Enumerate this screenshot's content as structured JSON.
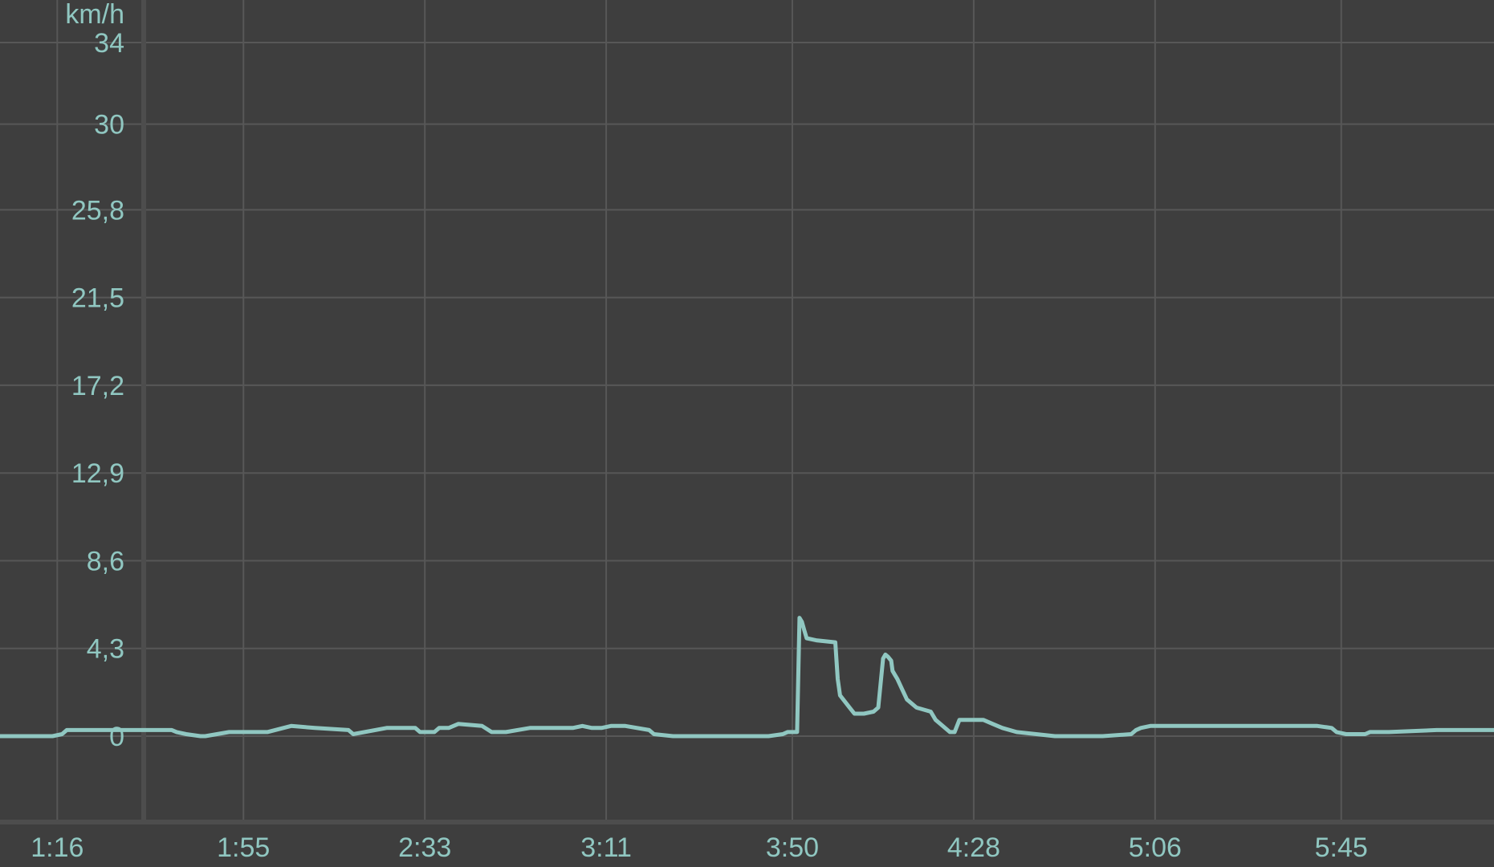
{
  "chart_data": {
    "type": "line",
    "title": "",
    "xlabel": "",
    "ylabel": "km/h",
    "grid": true,
    "legend": "none",
    "colors": {
      "background": "#3e3e3e",
      "grid": "#575757",
      "axis": "#4d4d4d",
      "line": "#90c7c1",
      "text": "#90c7c1"
    },
    "ylim": [
      -4.3,
      34
    ],
    "y_ticks": [
      {
        "value": 0,
        "label": "0"
      },
      {
        "value": 4.3,
        "label": "4,3"
      },
      {
        "value": 8.6,
        "label": "8,6"
      },
      {
        "value": 12.9,
        "label": "12,9"
      },
      {
        "value": 17.2,
        "label": "17,2"
      },
      {
        "value": 21.5,
        "label": "21,5"
      },
      {
        "value": 25.8,
        "label": "25,8"
      },
      {
        "value": 30,
        "label": "30"
      },
      {
        "value": 34,
        "label": "34"
      }
    ],
    "x_range_minutes": [
      64,
      377
    ],
    "x_ticks": [
      {
        "minutes": 76,
        "label": "1:16"
      },
      {
        "minutes": 115,
        "label": "1:55"
      },
      {
        "minutes": 153,
        "label": "2:33"
      },
      {
        "minutes": 191,
        "label": "3:11"
      },
      {
        "minutes": 230,
        "label": "3:50"
      },
      {
        "minutes": 268,
        "label": "4:28"
      },
      {
        "minutes": 306,
        "label": "5:06"
      },
      {
        "minutes": 345,
        "label": "5:45"
      }
    ],
    "x_grid_extra_minutes": [],
    "series": [
      {
        "name": "",
        "x_minutes": [
          64,
          75,
          77,
          78,
          100,
          101,
          103,
          106,
          107,
          112,
          114,
          120,
          125,
          130,
          137,
          138,
          145,
          151,
          152,
          155,
          156,
          158,
          160,
          165,
          167,
          170,
          175,
          177,
          178,
          184,
          186,
          188,
          190,
          192,
          194,
          195,
          200,
          201,
          205,
          206,
          214,
          220,
          225,
          228,
          229,
          231,
          231.5,
          232,
          232.5,
          233,
          235,
          239,
          239.5,
          240,
          242,
          243,
          245,
          247,
          248,
          249,
          249.5,
          250,
          250.7,
          251,
          251.5,
          252,
          253,
          254,
          256,
          259,
          260,
          263,
          264,
          264.5,
          265,
          270,
          272,
          274,
          277,
          285,
          290,
          295,
          301,
          302,
          303,
          305,
          306,
          307,
          310,
          325,
          340,
          343,
          344,
          346,
          348,
          350,
          351,
          355,
          365,
          377
        ],
        "y": [
          0,
          0,
          0.1,
          0.3,
          0.3,
          0.2,
          0.1,
          0,
          0,
          0.2,
          0.2,
          0.2,
          0.5,
          0.4,
          0.3,
          0.1,
          0.4,
          0.4,
          0.2,
          0.2,
          0.4,
          0.4,
          0.6,
          0.5,
          0.2,
          0.2,
          0.4,
          0.4,
          0.4,
          0.4,
          0.5,
          0.4,
          0.4,
          0.5,
          0.5,
          0.5,
          0.3,
          0.1,
          0,
          0,
          0,
          0,
          0,
          0.1,
          0.2,
          0.2,
          5.8,
          5.6,
          5.2,
          4.8,
          4.7,
          4.6,
          2.8,
          2.0,
          1.4,
          1.1,
          1.1,
          1.2,
          1.4,
          3.8,
          4.0,
          3.9,
          3.7,
          3.2,
          3.0,
          2.8,
          2.3,
          1.8,
          1.4,
          1.2,
          0.8,
          0.2,
          0.2,
          0.5,
          0.8,
          0.8,
          0.6,
          0.4,
          0.2,
          0,
          0,
          0,
          0.1,
          0.3,
          0.4,
          0.5,
          0.5,
          0.5,
          0.5,
          0.5,
          0.5,
          0.4,
          0.2,
          0.1,
          0.1,
          0.1,
          0.2,
          0.2,
          0.3,
          0.3
        ]
      }
    ]
  }
}
